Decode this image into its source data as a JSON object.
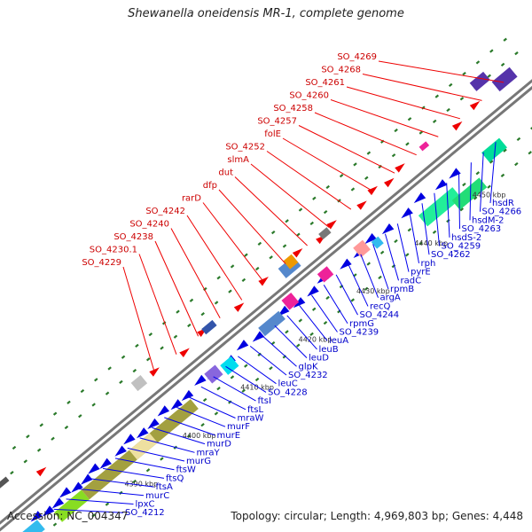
{
  "title": "Shewanella oneidensis MR-1, complete genome",
  "footer": {
    "accession": "Accession: NC_004347",
    "summary": "Topology: circular; Length: 4,969,803 bp; Genes: 4,448"
  },
  "colors": {
    "forward_label": "#cc0000",
    "reverse_label": "#0000cc",
    "backbone": "#888888",
    "tick": "#2a7a2a"
  },
  "ruler_marks": [
    "4390 kbp",
    "4400 kbp",
    "4410 kbp",
    "4420 kbp",
    "4430 kbp",
    "4440 kbp",
    "4450 kbp"
  ],
  "forward_genes": [
    "SO_4269",
    "SO_4268",
    "SO_4261",
    "SO_4260",
    "SO_4258",
    "SO_4257",
    "folE",
    "SO_4252",
    "slmA",
    "dut",
    "dfp",
    "rarD",
    "SO_4242",
    "SO_4240",
    "SO_4238",
    "SO_4230.1",
    "SO_4229"
  ],
  "reverse_genes": [
    "hsdR",
    "SO_4266",
    "hsdM-2",
    "SO_4263",
    "hsdS-2",
    "SO_4259",
    "SO_4262",
    "rph",
    "pyrE",
    "radC",
    "rpmB",
    "argA",
    "recQ",
    "SO_4244",
    "rpmG",
    "SO_4239",
    "leuA",
    "leuB",
    "leuD",
    "glpK",
    "SO_4232",
    "leuC",
    "SO_4228",
    "ftsI",
    "ftsL",
    "mraW",
    "murF",
    "murE",
    "murD",
    "mraY",
    "murG",
    "ftsW",
    "ftsQ",
    "ftsA",
    "murC",
    "lpxC",
    "SO_4212"
  ]
}
